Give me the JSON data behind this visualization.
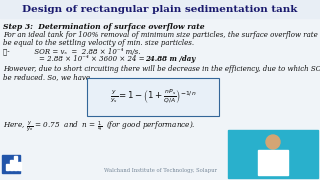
{
  "title": "Design of rectangular plain sedimentation tank",
  "bg_color": "#f0f4f8",
  "title_color": "#1a1a6e",
  "text_color": "#111111",
  "step_text": "Step 3:  Determination of surface overflow rate",
  "line1": "For an ideal tank for 100% removal of minimum size particles, the surface overflow rate will",
  "line2": "be equal to the settling velocity of min. size particles.",
  "sor_line1": "∴-           SOR = vₛ  =  2.88 × 10⁻⁴ m/s.",
  "sor_line2a": "                = 2.88 × 10⁻⁴ × 3600 × 24 = ",
  "sor_line2b": "24.88 m /day",
  "line5": "However, due to short circuiting there will be decrease in the efficiency, due to which SOR will",
  "line6": "be reduced. So, we have",
  "footer": "Walchand Institute of Technology, Solapur",
  "box_edge_color": "#336699",
  "box_face_color": "#e8f0f8",
  "person_box_color": "#29b0cc",
  "logo_color": "#2255aa"
}
